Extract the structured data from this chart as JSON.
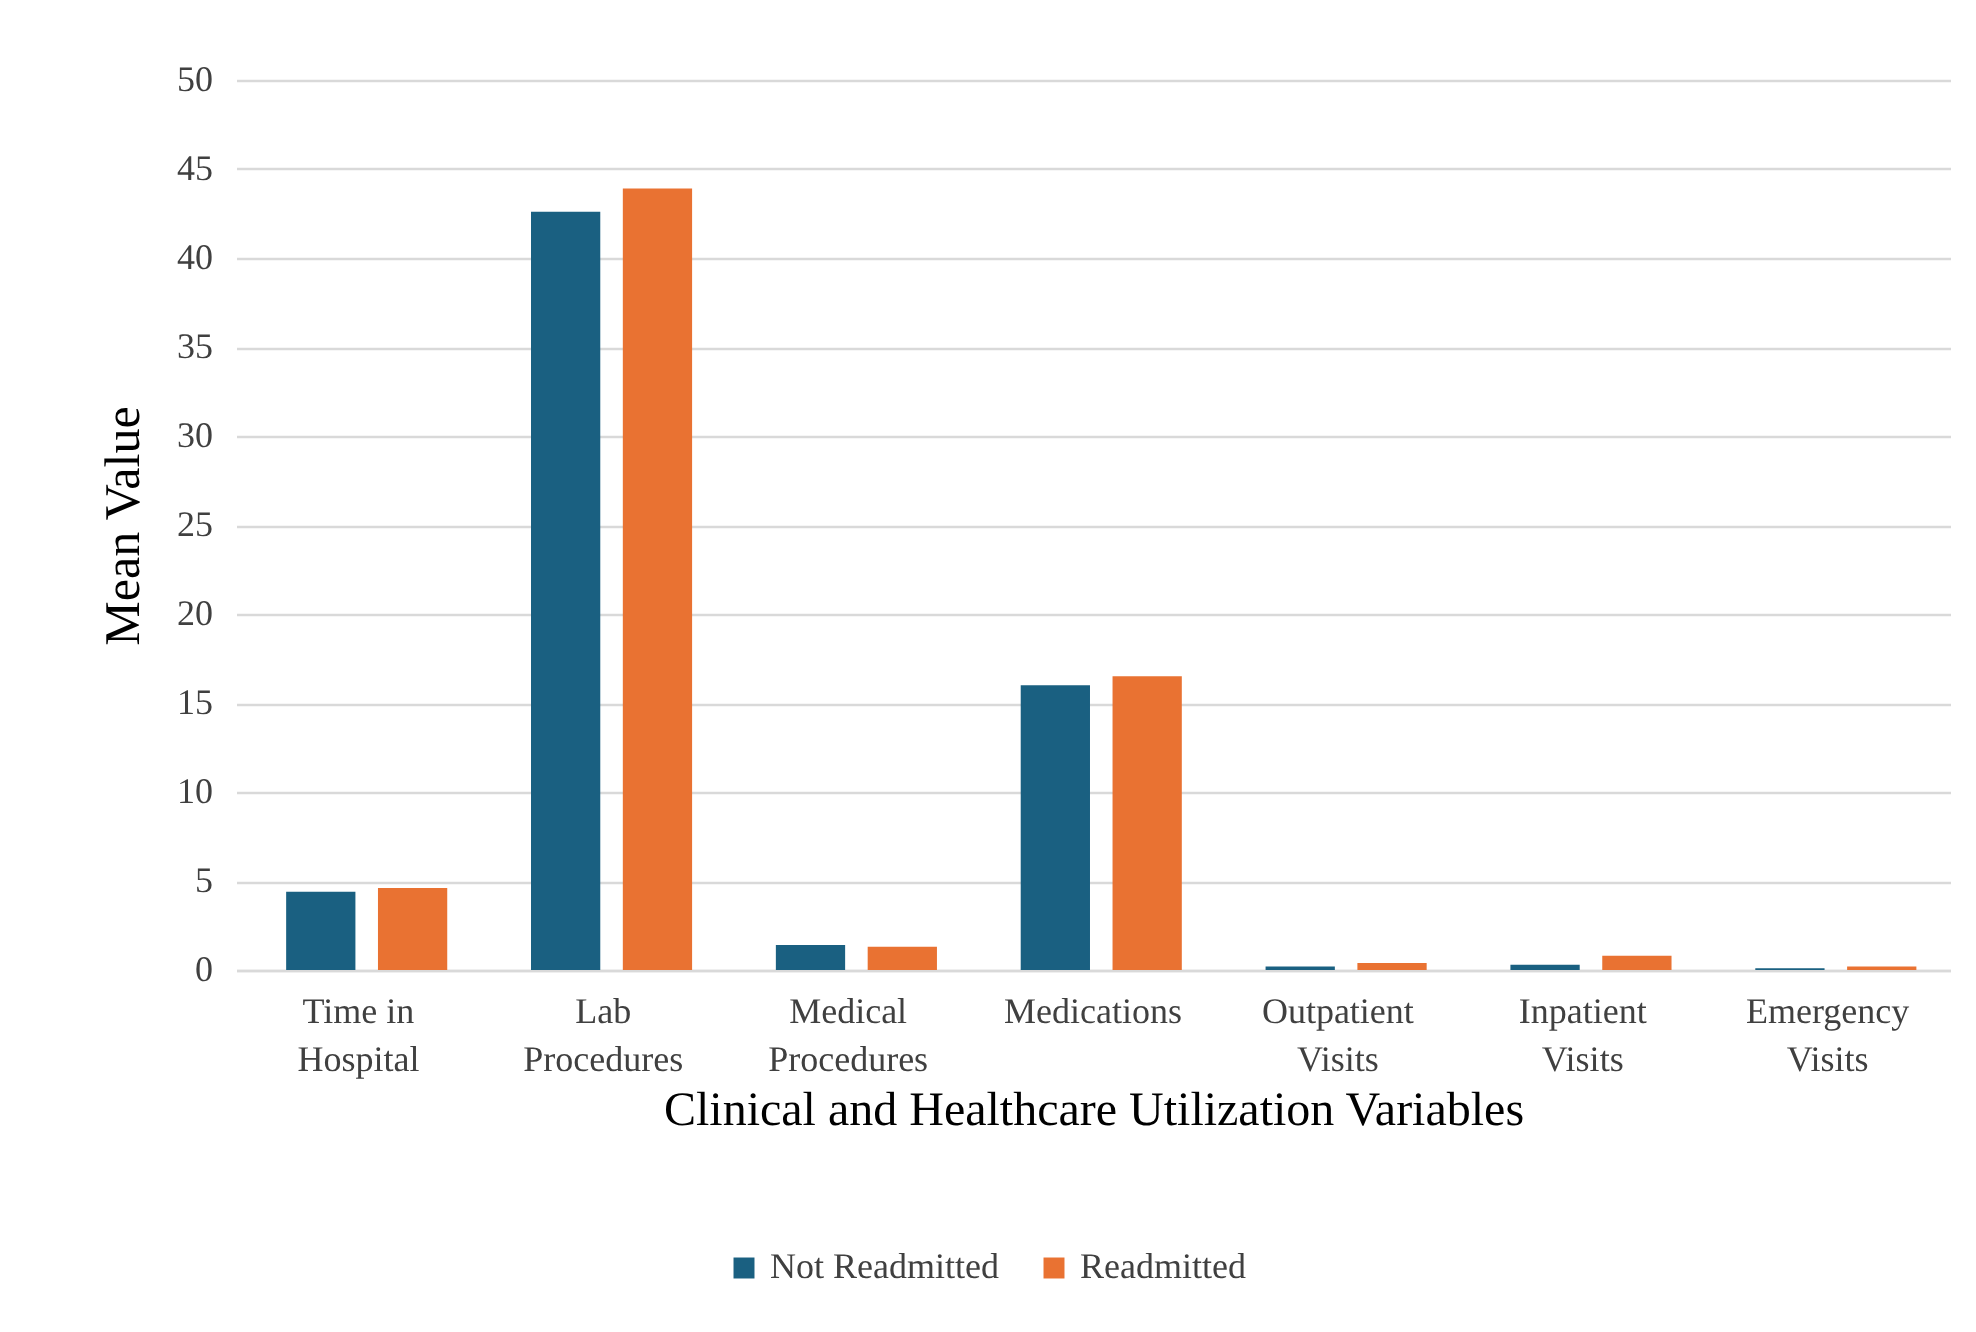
{
  "chart_data": {
    "type": "bar",
    "xlabel": "Clinical and Healthcare Utilization Variables",
    "ylabel": "Mean Value",
    "categories": [
      "Time in Hospital",
      "Lab Procedures",
      "Medical Procedures",
      "Medications",
      "Outpatient Visits",
      "Inpatient Visits",
      "Emergency Visits"
    ],
    "series": [
      {
        "name": "Not Readmitted",
        "color": "#1a6081",
        "values": [
          4.4,
          42.6,
          1.4,
          16,
          0.2,
          0.3,
          0.1
        ]
      },
      {
        "name": "Readmitted",
        "color": "#e97232",
        "values": [
          4.6,
          43.9,
          1.3,
          16.5,
          0.4,
          0.8,
          0.2
        ]
      }
    ],
    "ylim": [
      0,
      50
    ],
    "yticks": [
      0,
      5,
      10,
      15,
      20,
      25,
      30,
      35,
      40,
      45,
      50
    ],
    "grid": "y",
    "legend": "bottom"
  }
}
